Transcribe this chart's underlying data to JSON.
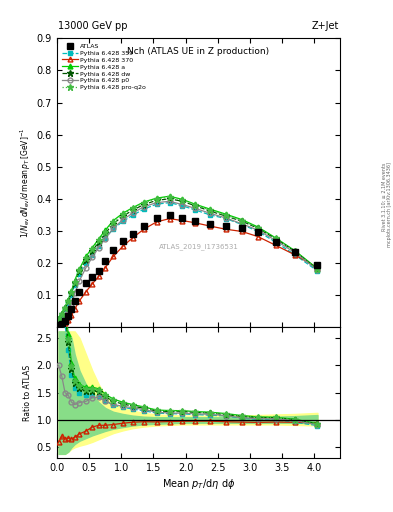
{
  "title_top": "13000 GeV pp",
  "title_right": "Z+Jet",
  "plot_title": "Nch (ATLAS UE in Z production)",
  "watermark": "ATLAS_2019_I1736531",
  "xlim": [
    0,
    4.4
  ],
  "ylim_main": [
    0,
    0.9
  ],
  "ylim_ratio": [
    0.3,
    2.7
  ],
  "ratio_yticks": [
    0.5,
    1.0,
    1.5,
    2.0,
    2.5
  ],
  "main_yticks": [
    0.1,
    0.2,
    0.3,
    0.4,
    0.5,
    0.6,
    0.7,
    0.8,
    0.9
  ],
  "x": [
    0.025,
    0.075,
    0.125,
    0.175,
    0.225,
    0.275,
    0.35,
    0.45,
    0.55,
    0.65,
    0.75,
    0.875,
    1.025,
    1.175,
    1.35,
    1.55,
    1.75,
    1.95,
    2.15,
    2.375,
    2.625,
    2.875,
    3.125,
    3.4,
    3.7,
    4.05
  ],
  "y_atlas": [
    0.005,
    0.01,
    0.02,
    0.033,
    0.055,
    0.082,
    0.11,
    0.138,
    0.155,
    0.175,
    0.205,
    0.24,
    0.268,
    0.29,
    0.315,
    0.34,
    0.348,
    0.34,
    0.332,
    0.322,
    0.315,
    0.31,
    0.295,
    0.265,
    0.235,
    0.195
  ],
  "y_py359": [
    0.025,
    0.038,
    0.055,
    0.075,
    0.1,
    0.13,
    0.165,
    0.2,
    0.225,
    0.252,
    0.278,
    0.305,
    0.33,
    0.348,
    0.368,
    0.383,
    0.388,
    0.378,
    0.365,
    0.35,
    0.338,
    0.32,
    0.298,
    0.265,
    0.225,
    0.175
  ],
  "y_py370": [
    0.003,
    0.007,
    0.013,
    0.022,
    0.036,
    0.056,
    0.082,
    0.11,
    0.135,
    0.158,
    0.185,
    0.22,
    0.252,
    0.278,
    0.305,
    0.328,
    0.338,
    0.332,
    0.325,
    0.315,
    0.305,
    0.298,
    0.282,
    0.255,
    0.225,
    0.185
  ],
  "y_pya": [
    0.028,
    0.043,
    0.062,
    0.085,
    0.112,
    0.145,
    0.182,
    0.22,
    0.248,
    0.275,
    0.302,
    0.332,
    0.355,
    0.372,
    0.39,
    0.402,
    0.408,
    0.398,
    0.383,
    0.368,
    0.352,
    0.335,
    0.312,
    0.278,
    0.238,
    0.182
  ],
  "y_pydw": [
    0.025,
    0.04,
    0.058,
    0.08,
    0.106,
    0.138,
    0.174,
    0.21,
    0.238,
    0.265,
    0.292,
    0.322,
    0.346,
    0.364,
    0.382,
    0.395,
    0.4,
    0.392,
    0.378,
    0.362,
    0.346,
    0.33,
    0.308,
    0.275,
    0.236,
    0.18
  ],
  "y_pyp0": [
    0.01,
    0.018,
    0.03,
    0.048,
    0.073,
    0.105,
    0.145,
    0.185,
    0.218,
    0.248,
    0.275,
    0.308,
    0.335,
    0.355,
    0.375,
    0.388,
    0.392,
    0.382,
    0.37,
    0.355,
    0.34,
    0.322,
    0.302,
    0.27,
    0.232,
    0.178
  ],
  "y_pyproq2o": [
    0.026,
    0.041,
    0.06,
    0.082,
    0.109,
    0.141,
    0.178,
    0.215,
    0.242,
    0.27,
    0.297,
    0.328,
    0.352,
    0.37,
    0.388,
    0.4,
    0.405,
    0.396,
    0.381,
    0.365,
    0.349,
    0.332,
    0.31,
    0.277,
    0.237,
    0.181
  ],
  "color_atlas": "#000000",
  "color_py359": "#00bbbb",
  "color_py370": "#cc2200",
  "color_pya": "#00cc00",
  "color_pydw": "#005500",
  "color_pyp0": "#888888",
  "color_pyproq2o": "#44bb44",
  "band_x": [
    0.025,
    0.075,
    0.125,
    0.175,
    0.225,
    0.275,
    0.35,
    0.45,
    0.55,
    0.65,
    0.75,
    0.875,
    1.025,
    1.175,
    1.35,
    1.55,
    1.75,
    1.95,
    2.15,
    2.375,
    2.625,
    2.875,
    3.125,
    3.4,
    3.7,
    4.05
  ],
  "band_yellow_lo": [
    0.38,
    0.38,
    0.38,
    0.42,
    0.47,
    0.5,
    0.53,
    0.56,
    0.6,
    0.65,
    0.7,
    0.76,
    0.81,
    0.85,
    0.88,
    0.9,
    0.91,
    0.92,
    0.92,
    0.92,
    0.92,
    0.92,
    0.92,
    0.92,
    0.91,
    0.9
  ],
  "band_yellow_hi": [
    2.62,
    2.62,
    2.62,
    2.62,
    2.62,
    2.62,
    2.5,
    2.2,
    1.9,
    1.65,
    1.45,
    1.3,
    1.22,
    1.17,
    1.13,
    1.1,
    1.09,
    1.08,
    1.08,
    1.08,
    1.08,
    1.08,
    1.09,
    1.1,
    1.11,
    1.13
  ],
  "band_green_lo": [
    0.38,
    0.38,
    0.38,
    0.42,
    0.5,
    0.56,
    0.62,
    0.67,
    0.72,
    0.76,
    0.8,
    0.84,
    0.87,
    0.9,
    0.92,
    0.93,
    0.94,
    0.95,
    0.95,
    0.95,
    0.95,
    0.95,
    0.95,
    0.95,
    0.95,
    0.94
  ],
  "band_green_hi": [
    2.62,
    2.62,
    2.62,
    2.62,
    2.5,
    2.2,
    1.9,
    1.65,
    1.45,
    1.32,
    1.22,
    1.15,
    1.11,
    1.08,
    1.06,
    1.05,
    1.05,
    1.05,
    1.05,
    1.05,
    1.05,
    1.05,
    1.05,
    1.06,
    1.07,
    1.09
  ]
}
